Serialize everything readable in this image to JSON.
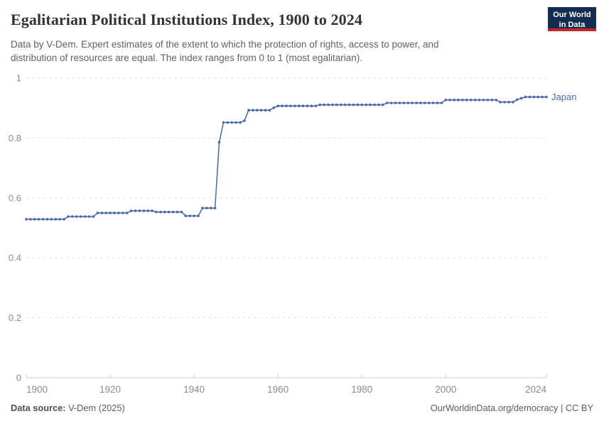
{
  "header": {
    "title": "Egalitarian Political Institutions Index, 1900 to 2024",
    "subtitle_line1": "Data by V-Dem. Expert estimates of the extent to which the protection of rights, access to power, and",
    "subtitle_line2": "distribution of resources are equal. The index ranges from 0 to 1 (most egalitarian).",
    "logo": {
      "line1": "Our World",
      "line2": "in Data",
      "bg_color": "#132c4f",
      "bar_color": "#c0262d",
      "text_color": "#ffffff"
    }
  },
  "chart_data": {
    "type": "line",
    "title": "Egalitarian Political Institutions Index, 1900 to 2024",
    "xlabel": "",
    "ylabel": "",
    "xlim": [
      1900,
      2024
    ],
    "ylim": [
      0,
      1
    ],
    "x_ticks": [
      1900,
      1920,
      1940,
      1960,
      1980,
      2000,
      2024
    ],
    "y_ticks": [
      0,
      0.2,
      0.4,
      0.6,
      0.8,
      1
    ],
    "y_tick_labels": [
      "0",
      "0.2",
      "0.4",
      "0.6",
      "0.8",
      "1"
    ],
    "grid": "horizontal-dashed",
    "legend_position": "end-of-line-label",
    "colors": {
      "series": "#4868a7",
      "gridline": "#e2e2e2",
      "axis": "#cccccc",
      "tick_text": "#8a8a8a"
    },
    "series": [
      {
        "name": "Japan",
        "color": "#4868a7",
        "years": [
          1900,
          1901,
          1902,
          1903,
          1904,
          1905,
          1906,
          1907,
          1908,
          1909,
          1910,
          1911,
          1912,
          1913,
          1914,
          1915,
          1916,
          1917,
          1918,
          1919,
          1920,
          1921,
          1922,
          1923,
          1924,
          1925,
          1926,
          1927,
          1928,
          1929,
          1930,
          1931,
          1932,
          1933,
          1934,
          1935,
          1936,
          1937,
          1938,
          1939,
          1940,
          1941,
          1942,
          1943,
          1944,
          1945,
          1946,
          1947,
          1948,
          1949,
          1950,
          1951,
          1952,
          1953,
          1954,
          1955,
          1956,
          1957,
          1958,
          1959,
          1960,
          1961,
          1962,
          1963,
          1964,
          1965,
          1966,
          1967,
          1968,
          1969,
          1970,
          1971,
          1972,
          1973,
          1974,
          1975,
          1976,
          1977,
          1978,
          1979,
          1980,
          1981,
          1982,
          1983,
          1984,
          1985,
          1986,
          1987,
          1988,
          1989,
          1990,
          1991,
          1992,
          1993,
          1994,
          1995,
          1996,
          1997,
          1998,
          1999,
          2000,
          2001,
          2002,
          2003,
          2004,
          2005,
          2006,
          2007,
          2008,
          2009,
          2010,
          2011,
          2012,
          2013,
          2014,
          2015,
          2016,
          2017,
          2018,
          2019,
          2020,
          2021,
          2022,
          2023,
          2024
        ],
        "values": [
          0.529,
          0.529,
          0.529,
          0.529,
          0.529,
          0.529,
          0.529,
          0.529,
          0.529,
          0.529,
          0.538,
          0.538,
          0.538,
          0.538,
          0.538,
          0.538,
          0.538,
          0.55,
          0.55,
          0.55,
          0.55,
          0.55,
          0.55,
          0.55,
          0.55,
          0.557,
          0.557,
          0.557,
          0.557,
          0.557,
          0.557,
          0.553,
          0.553,
          0.553,
          0.553,
          0.553,
          0.553,
          0.553,
          0.54,
          0.54,
          0.54,
          0.54,
          0.566,
          0.566,
          0.566,
          0.566,
          0.786,
          0.852,
          0.852,
          0.852,
          0.852,
          0.852,
          0.858,
          0.893,
          0.893,
          0.893,
          0.893,
          0.893,
          0.893,
          0.901,
          0.907,
          0.907,
          0.907,
          0.907,
          0.907,
          0.907,
          0.907,
          0.907,
          0.907,
          0.907,
          0.911,
          0.911,
          0.911,
          0.911,
          0.911,
          0.911,
          0.911,
          0.911,
          0.911,
          0.911,
          0.911,
          0.911,
          0.911,
          0.911,
          0.911,
          0.911,
          0.917,
          0.917,
          0.917,
          0.917,
          0.917,
          0.917,
          0.917,
          0.917,
          0.917,
          0.917,
          0.917,
          0.917,
          0.917,
          0.917,
          0.927,
          0.927,
          0.927,
          0.927,
          0.927,
          0.927,
          0.927,
          0.927,
          0.927,
          0.927,
          0.927,
          0.927,
          0.927,
          0.92,
          0.92,
          0.92,
          0.92,
          0.928,
          0.933,
          0.937,
          0.937,
          0.937,
          0.937,
          0.937,
          0.937
        ]
      }
    ]
  },
  "footer": {
    "source_label": "Data source:",
    "source_value": " V-Dem (2025)",
    "credit": "OurWorldinData.org/democracy | CC BY"
  }
}
